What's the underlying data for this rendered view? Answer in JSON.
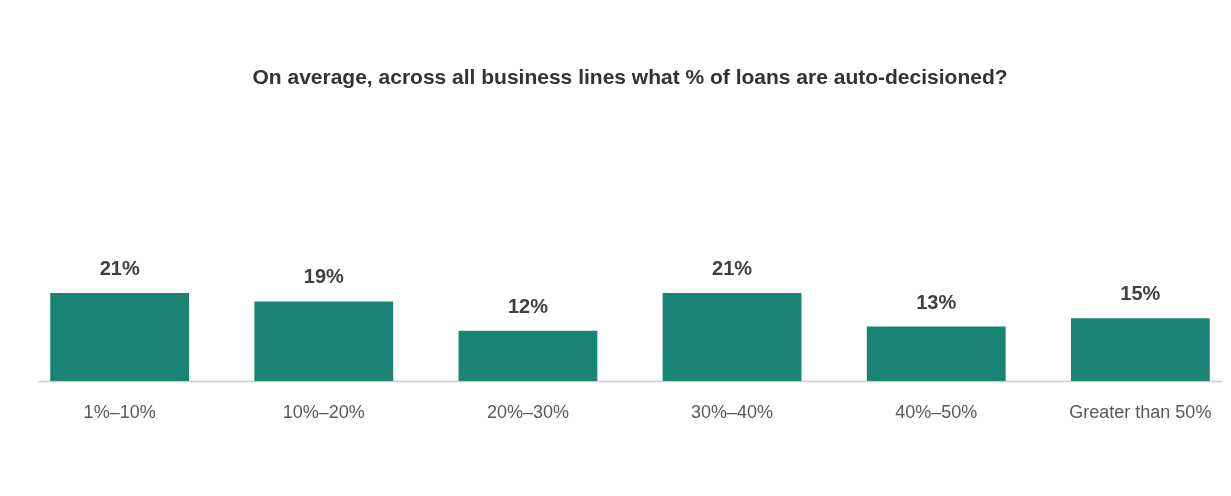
{
  "chart_data": {
    "type": "bar",
    "title": "On average, across all business lines what % of loans are auto-decisioned?",
    "categories": [
      "1%–10%",
      "10%–20%",
      "20%–30%",
      "30%–40%",
      "40%–50%",
      "Greater than 50%"
    ],
    "values": [
      21,
      19,
      12,
      21,
      13,
      15
    ],
    "value_labels": [
      "21%",
      "19%",
      "12%",
      "21%",
      "13%",
      "15%"
    ],
    "color": "#1a8474"
  }
}
